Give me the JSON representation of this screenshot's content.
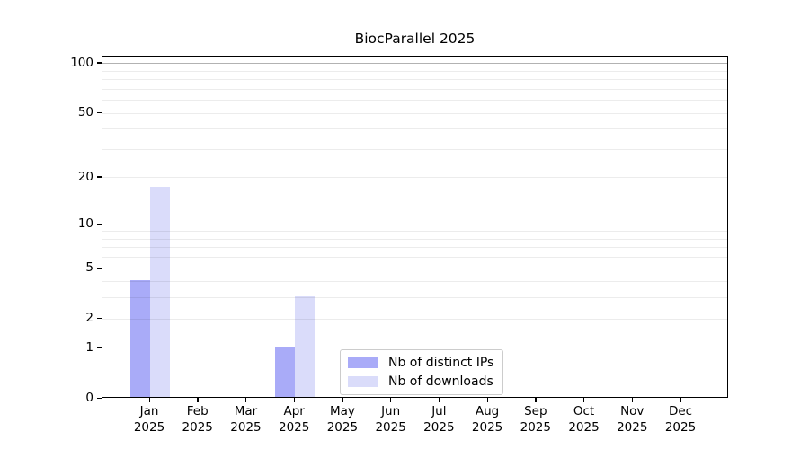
{
  "title": "BiocParallel 2025",
  "chart_data": {
    "type": "bar",
    "title": "BiocParallel 2025",
    "categories": [
      "Jan",
      "Feb",
      "Mar",
      "Apr",
      "May",
      "Jun",
      "Jul",
      "Aug",
      "Sep",
      "Oct",
      "Nov",
      "Dec"
    ],
    "category_year": "2025",
    "series": [
      {
        "name": "Nb of distinct IPs",
        "color": "#a9abf8",
        "values": [
          4,
          0,
          0,
          1,
          0,
          0,
          0,
          0,
          0,
          0,
          0,
          0
        ]
      },
      {
        "name": "Nb of downloads",
        "color": "#dadcfa",
        "values": [
          17,
          0,
          0,
          3,
          0,
          0,
          0,
          0,
          0,
          0,
          0,
          0
        ]
      }
    ],
    "xlabel": "",
    "ylabel": "",
    "y_scale": "log10(value+1)",
    "ylim": [
      0,
      110.5
    ],
    "y_ticks": [
      0,
      1,
      2,
      5,
      10,
      20,
      50,
      100
    ],
    "y_major_gridlines": [
      1,
      10,
      100
    ],
    "y_minor_gridlines": [
      2,
      3,
      4,
      5,
      6,
      7,
      8,
      9,
      20,
      30,
      40,
      50,
      60,
      70,
      80,
      90
    ],
    "grid": "on",
    "legend": {
      "position": "lower center",
      "entries": [
        "Nb of distinct IPs",
        "Nb of downloads"
      ]
    }
  },
  "colors": {
    "distinct_ips_bar": "#a9abf8",
    "downloads_bar": "#dadcfa",
    "major_grid": "#b3b3b3",
    "minor_grid": "#ececec",
    "axis": "#000000",
    "legend_border": "#cccccc",
    "background": "#ffffff"
  }
}
